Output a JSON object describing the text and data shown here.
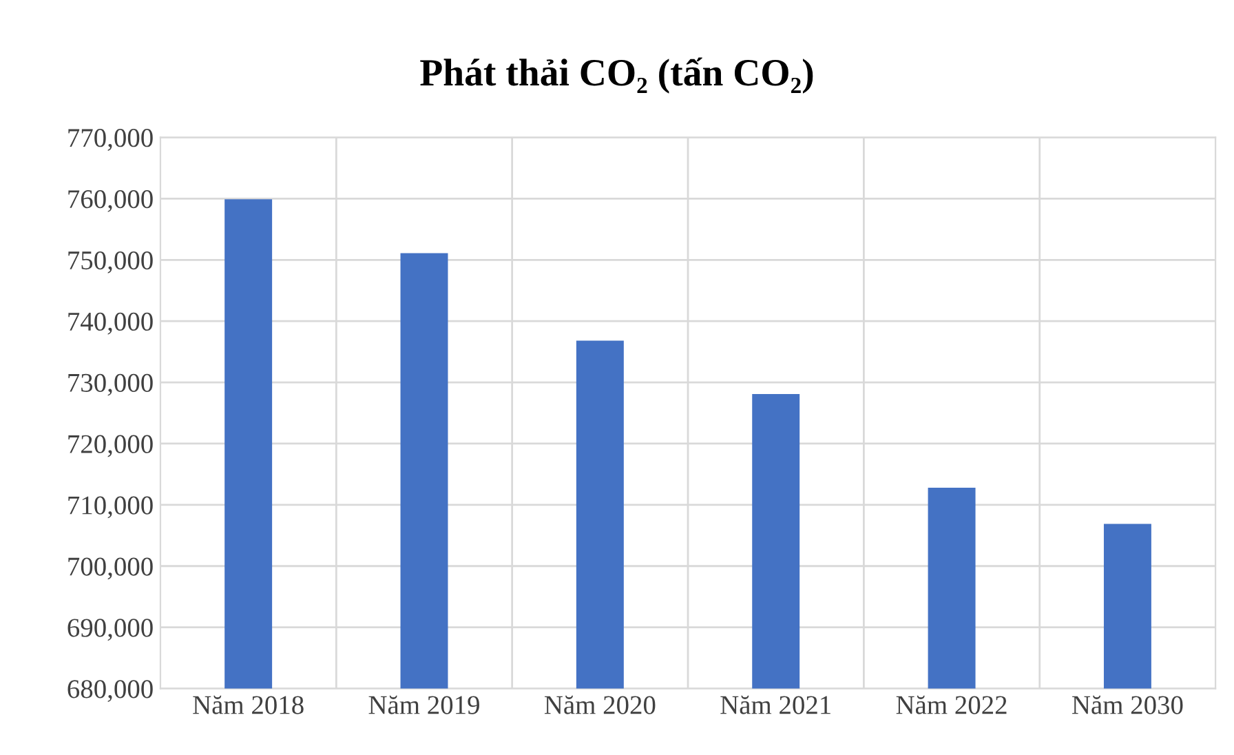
{
  "chart_data": {
    "type": "bar",
    "title": "Phát thải CO₂ (tấn CO₂)",
    "categories": [
      "Năm 2018",
      "Năm 2019",
      "Năm 2020",
      "Năm 2021",
      "Năm 2022",
      "Năm 2030"
    ],
    "values": [
      759900,
      751100,
      736800,
      728100,
      712800,
      706900
    ],
    "color": "#4472c4",
    "ylim": [
      680000,
      770000
    ],
    "yticks": [
      {
        "value": 680000,
        "label": "680,000"
      },
      {
        "value": 690000,
        "label": "690,000"
      },
      {
        "value": 700000,
        "label": "700,000"
      },
      {
        "value": 710000,
        "label": "710,000"
      },
      {
        "value": 720000,
        "label": "720,000"
      },
      {
        "value": 730000,
        "label": "730,000"
      },
      {
        "value": 740000,
        "label": "740,000"
      },
      {
        "value": 750000,
        "label": "750,000"
      },
      {
        "value": 760000,
        "label": "760,000"
      },
      {
        "value": 770000,
        "label": "770,000"
      }
    ],
    "grid": true
  }
}
